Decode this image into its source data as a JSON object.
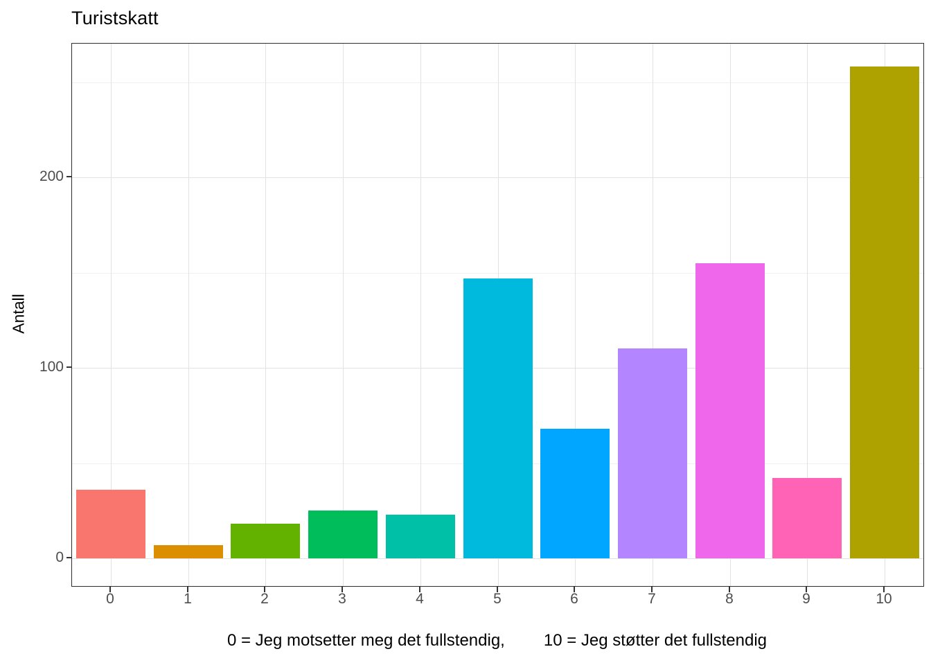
{
  "chart_data": {
    "type": "bar",
    "title": "Turistskatt",
    "xlabel": "",
    "ylabel": "Antall",
    "categories": [
      "0",
      "1",
      "2",
      "3",
      "4",
      "5",
      "6",
      "7",
      "8",
      "9",
      "10"
    ],
    "values": [
      36,
      7,
      18,
      25,
      23,
      147,
      68,
      110,
      155,
      42,
      258
    ],
    "bar_colors": [
      "#F8766D",
      "#DB8E00",
      "#64B200",
      "#00BD5C",
      "#00C1A7",
      "#00BADE",
      "#00A6FF",
      "#B385FF",
      "#EF67EB",
      "#FF63B6",
      "#AEA200"
    ],
    "yticks": [
      0,
      100,
      200
    ],
    "yticks_minor": [
      50,
      150,
      250
    ],
    "ylim": [
      0,
      270
    ],
    "grid": true,
    "legend": "none",
    "panel_border_color": "#2b2b2b",
    "annotation_left": "0 = Jeg motsetter meg det fullstendig,",
    "annotation_right": "10 = Jeg støtter det fullstendig"
  }
}
